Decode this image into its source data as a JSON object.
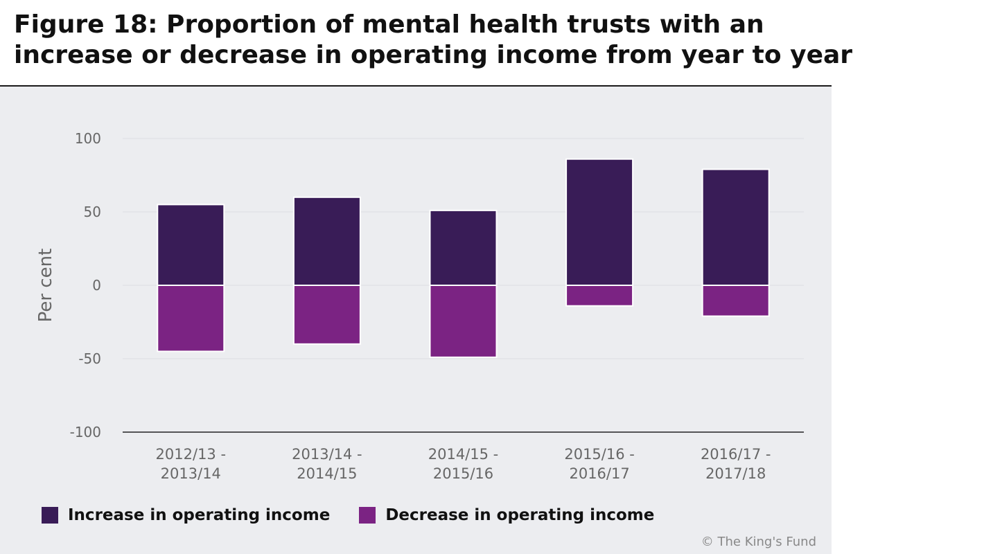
{
  "title": "Figure 18: Proportion of mental health trusts with an\nincrease or decrease in operating income from year to year",
  "credit": "© The King's Fund",
  "chart_data": {
    "type": "bar",
    "stacked": true,
    "title": "Figure 18: Proportion of mental health trusts with an increase or decrease in operating income from year to year",
    "ylabel": "Per cent",
    "xlabel": "",
    "ylim": [
      -100,
      100
    ],
    "yticks": [
      100,
      50,
      0,
      -50,
      -100
    ],
    "grid": true,
    "legend_position": "bottom-left",
    "categories": [
      [
        "2012/13 -",
        "2013/14"
      ],
      [
        "2013/14 -",
        "2014/15"
      ],
      [
        "2014/15 -",
        "2015/16"
      ],
      [
        "2015/16 -",
        "2016/17"
      ],
      [
        "2016/17 -",
        "2017/18"
      ]
    ],
    "series": [
      {
        "name": "Increase in operating income",
        "color": "#391c57",
        "values": [
          55,
          60,
          51,
          86,
          79
        ]
      },
      {
        "name": "Decrease in operating income",
        "color": "#7b2383",
        "values": [
          -45,
          -40,
          -49,
          -14,
          -21
        ]
      }
    ]
  }
}
